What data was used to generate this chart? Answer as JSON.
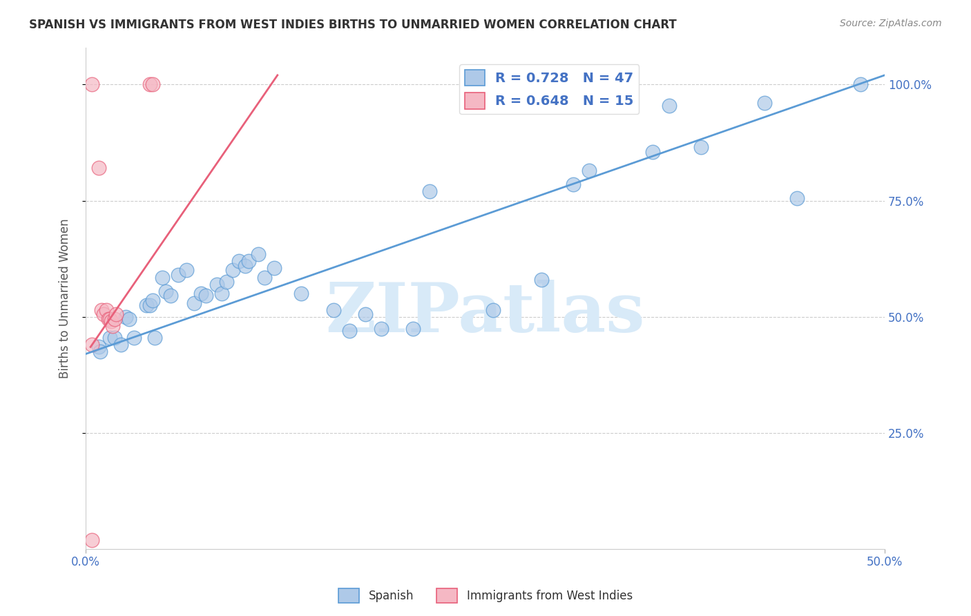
{
  "title": "SPANISH VS IMMIGRANTS FROM WEST INDIES BIRTHS TO UNMARRIED WOMEN CORRELATION CHART",
  "source": "Source: ZipAtlas.com",
  "ylabel": "Births to Unmarried Women",
  "legend_blue_label": "R = 0.728   N = 47",
  "legend_pink_label": "R = 0.648   N = 15",
  "watermark": "ZIPatlas",
  "blue_color": "#aec9e8",
  "pink_color": "#f5b8c4",
  "line_blue": "#5b9bd5",
  "line_pink": "#e8607a",
  "ytick_labels": [
    "25.0%",
    "50.0%",
    "75.0%",
    "100.0%"
  ],
  "ytick_values": [
    0.25,
    0.5,
    0.75,
    1.0
  ],
  "xlim": [
    0.0,
    0.5
  ],
  "ylim": [
    0.0,
    1.08
  ],
  "blue_scatter": [
    [
      0.008,
      0.435
    ],
    [
      0.009,
      0.425
    ],
    [
      0.015,
      0.455
    ],
    [
      0.018,
      0.455
    ],
    [
      0.022,
      0.44
    ],
    [
      0.025,
      0.5
    ],
    [
      0.027,
      0.495
    ],
    [
      0.03,
      0.455
    ],
    [
      0.038,
      0.525
    ],
    [
      0.04,
      0.525
    ],
    [
      0.042,
      0.535
    ],
    [
      0.043,
      0.455
    ],
    [
      0.048,
      0.585
    ],
    [
      0.05,
      0.555
    ],
    [
      0.053,
      0.545
    ],
    [
      0.058,
      0.59
    ],
    [
      0.063,
      0.6
    ],
    [
      0.068,
      0.53
    ],
    [
      0.072,
      0.55
    ],
    [
      0.075,
      0.545
    ],
    [
      0.082,
      0.57
    ],
    [
      0.085,
      0.55
    ],
    [
      0.088,
      0.575
    ],
    [
      0.092,
      0.6
    ],
    [
      0.096,
      0.62
    ],
    [
      0.1,
      0.61
    ],
    [
      0.102,
      0.62
    ],
    [
      0.108,
      0.635
    ],
    [
      0.112,
      0.585
    ],
    [
      0.118,
      0.605
    ],
    [
      0.135,
      0.55
    ],
    [
      0.155,
      0.515
    ],
    [
      0.165,
      0.47
    ],
    [
      0.175,
      0.505
    ],
    [
      0.185,
      0.475
    ],
    [
      0.205,
      0.475
    ],
    [
      0.215,
      0.77
    ],
    [
      0.255,
      0.515
    ],
    [
      0.285,
      0.58
    ],
    [
      0.305,
      0.785
    ],
    [
      0.315,
      0.815
    ],
    [
      0.355,
      0.855
    ],
    [
      0.365,
      0.955
    ],
    [
      0.385,
      0.865
    ],
    [
      0.425,
      0.96
    ],
    [
      0.445,
      0.755
    ],
    [
      0.485,
      1.0
    ]
  ],
  "pink_scatter": [
    [
      0.004,
      1.0
    ],
    [
      0.008,
      0.82
    ],
    [
      0.01,
      0.515
    ],
    [
      0.011,
      0.505
    ],
    [
      0.013,
      0.515
    ],
    [
      0.014,
      0.495
    ],
    [
      0.015,
      0.495
    ],
    [
      0.016,
      0.49
    ],
    [
      0.017,
      0.48
    ],
    [
      0.018,
      0.495
    ],
    [
      0.019,
      0.505
    ],
    [
      0.04,
      1.0
    ],
    [
      0.042,
      1.0
    ],
    [
      0.004,
      0.02
    ],
    [
      0.004,
      0.44
    ]
  ],
  "blue_line": [
    [
      0.0,
      0.42
    ],
    [
      0.5,
      1.02
    ]
  ],
  "pink_line": [
    [
      0.003,
      0.435
    ],
    [
      0.12,
      1.02
    ]
  ]
}
